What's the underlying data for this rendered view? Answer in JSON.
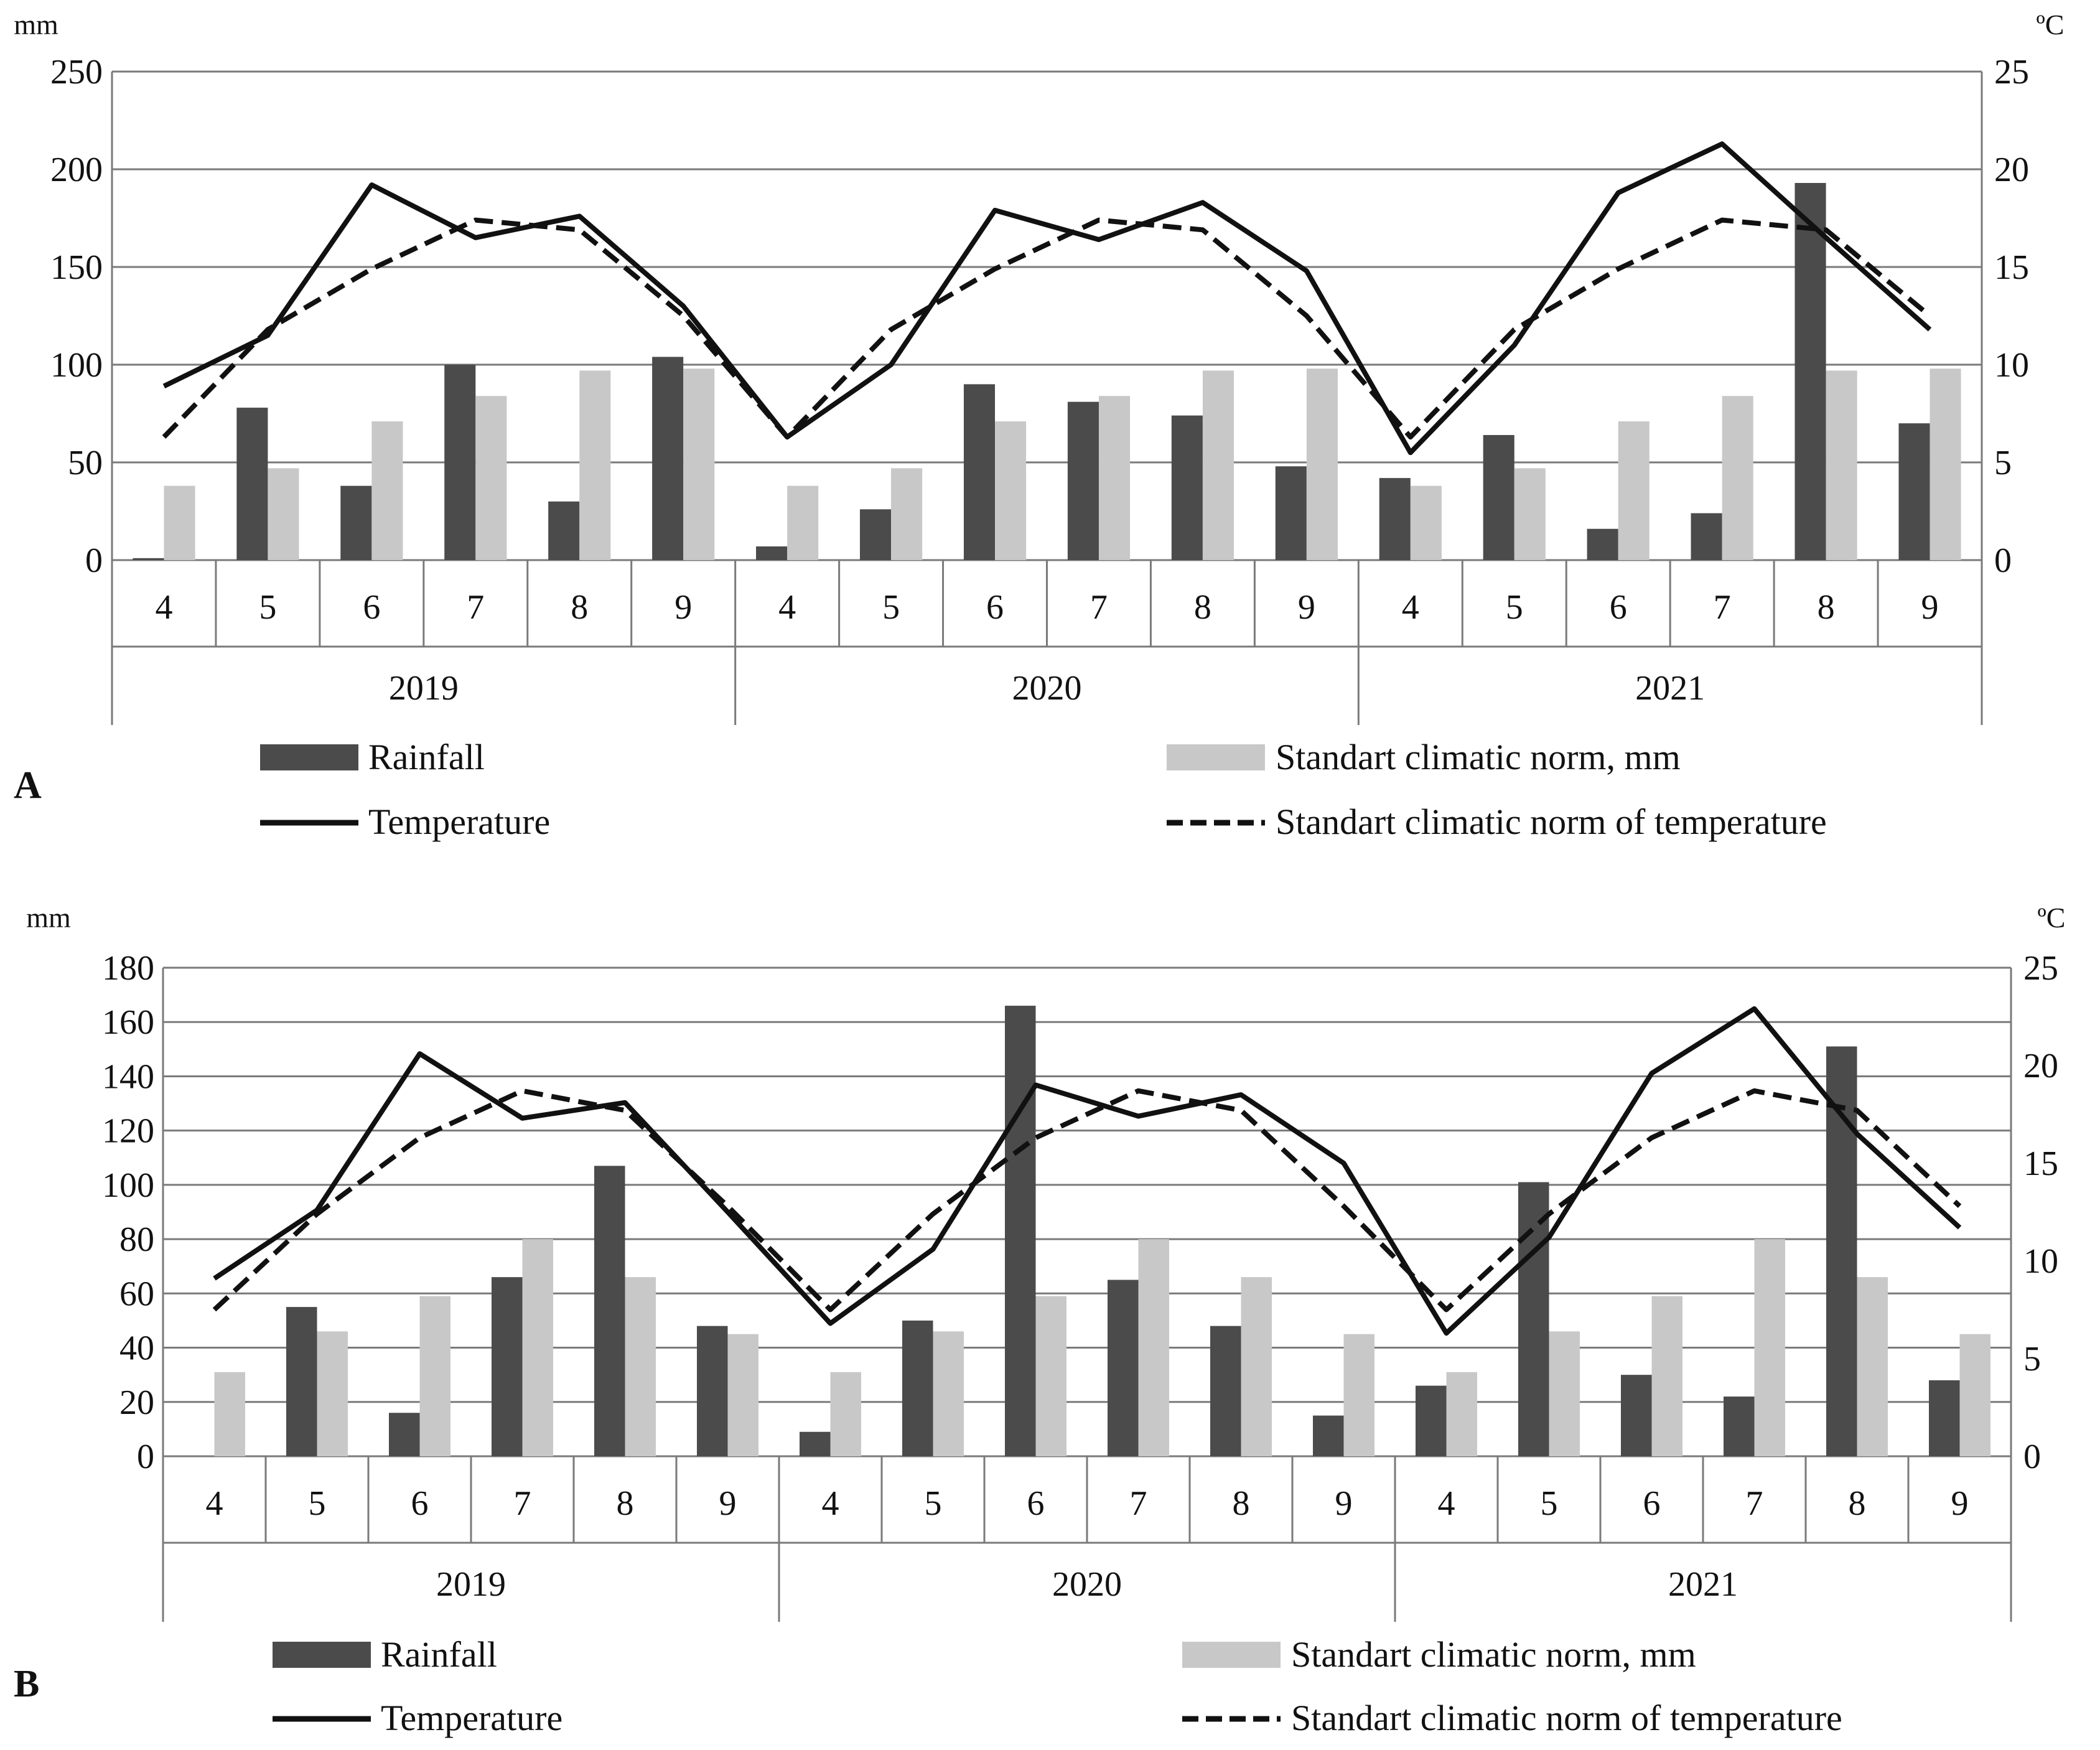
{
  "colors": {
    "rainfall": "#4b4b4b",
    "norm_rain": "#c8c8c8",
    "grid": "#7a7a7a",
    "line": "#111111"
  },
  "chart_data": [
    {
      "panel_label": "A",
      "type": "bar",
      "left_unit": "mm",
      "right_unit": "ºC",
      "ylim_left": [
        0,
        250
      ],
      "left_ticks": [
        0,
        50,
        100,
        150,
        200,
        250
      ],
      "ylim_right": [
        0,
        25
      ],
      "right_ticks": [
        0,
        5,
        10,
        15,
        20,
        25
      ],
      "years": [
        "2019",
        "2020",
        "2021"
      ],
      "categories": [
        "4",
        "5",
        "6",
        "7",
        "8",
        "9",
        "4",
        "5",
        "6",
        "7",
        "8",
        "9",
        "4",
        "5",
        "6",
        "7",
        "8",
        "9"
      ],
      "series": [
        {
          "name": "Rainfall",
          "kind": "bar",
          "axis": "left",
          "values": [
            1,
            78,
            38,
            100,
            30,
            104,
            7,
            26,
            90,
            81,
            74,
            48,
            42,
            64,
            16,
            24,
            193,
            70
          ]
        },
        {
          "name": "Standart climatic norm, mm",
          "kind": "bar",
          "axis": "left",
          "values": [
            38,
            47,
            71,
            84,
            97,
            98,
            38,
            47,
            71,
            84,
            97,
            98,
            38,
            47,
            71,
            84,
            97,
            98
          ]
        },
        {
          "name": "Temperature",
          "kind": "line",
          "style": "solid",
          "axis": "right",
          "values": [
            8.9,
            11.5,
            19.2,
            16.5,
            17.6,
            13.0,
            6.3,
            10.0,
            17.9,
            16.4,
            18.3,
            14.8,
            5.5,
            11.0,
            18.8,
            21.3,
            16.5,
            11.8
          ]
        },
        {
          "name": "Standart climatic norm of temperature",
          "kind": "line",
          "style": "dashed",
          "axis": "right",
          "values": [
            6.3,
            11.8,
            14.9,
            17.4,
            16.9,
            12.5,
            6.3,
            11.8,
            14.9,
            17.4,
            16.9,
            12.5,
            6.3,
            11.8,
            14.9,
            17.4,
            16.9,
            12.5
          ]
        }
      ],
      "legend": {
        "rainfall": "Rainfall",
        "norm_rain": "Standart climatic norm, mm",
        "temperature": "Temperature",
        "norm_temp": "Standart climatic norm of temperature"
      }
    },
    {
      "panel_label": "B",
      "type": "bar",
      "left_unit": "mm",
      "right_unit": "ºC",
      "ylim_left": [
        0,
        180
      ],
      "left_ticks": [
        0,
        20,
        40,
        60,
        80,
        100,
        120,
        140,
        160,
        180
      ],
      "ylim_right": [
        0,
        25
      ],
      "right_ticks": [
        0,
        5,
        10,
        15,
        20,
        25
      ],
      "years": [
        "2019",
        "2020",
        "2021"
      ],
      "categories": [
        "4",
        "5",
        "6",
        "7",
        "8",
        "9",
        "4",
        "5",
        "6",
        "7",
        "8",
        "9",
        "4",
        "5",
        "6",
        "7",
        "8",
        "9"
      ],
      "series": [
        {
          "name": "Rainfall",
          "kind": "bar",
          "axis": "left",
          "values": [
            0,
            55,
            16,
            66,
            107,
            48,
            9,
            50,
            166,
            65,
            48,
            15,
            26,
            101,
            30,
            22,
            151,
            28
          ]
        },
        {
          "name": "Standart climatic norm, mm",
          "kind": "bar",
          "axis": "left",
          "values": [
            31,
            46,
            59,
            80,
            66,
            45,
            31,
            46,
            59,
            80,
            66,
            45,
            31,
            46,
            59,
            80,
            66,
            45
          ]
        },
        {
          "name": "Temperature",
          "kind": "line",
          "style": "solid",
          "axis": "right",
          "values": [
            9.1,
            12.6,
            20.6,
            17.3,
            18.1,
            12.5,
            6.8,
            10.6,
            19.0,
            17.4,
            18.5,
            15.0,
            6.3,
            11.2,
            19.6,
            22.9,
            16.5,
            11.7
          ]
        },
        {
          "name": "Standart climatic norm of temperature",
          "kind": "line",
          "style": "dashed",
          "axis": "right",
          "values": [
            7.5,
            12.4,
            16.3,
            18.7,
            17.7,
            12.8,
            7.5,
            12.4,
            16.3,
            18.7,
            17.7,
            12.8,
            7.5,
            12.4,
            16.3,
            18.7,
            17.7,
            12.8
          ]
        }
      ],
      "legend": {
        "rainfall": "Rainfall",
        "norm_rain": "Standart climatic norm, mm",
        "temperature": "Temperature",
        "norm_temp": "Standart climatic norm of temperature"
      }
    }
  ]
}
